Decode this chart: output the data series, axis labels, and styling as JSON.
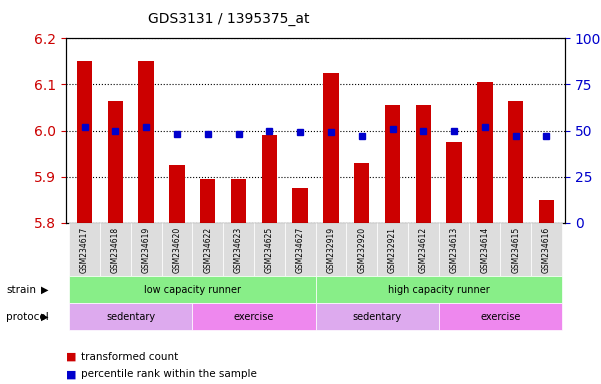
{
  "title": "GDS3131 / 1395375_at",
  "samples": [
    "GSM234617",
    "GSM234618",
    "GSM234619",
    "GSM234620",
    "GSM234622",
    "GSM234623",
    "GSM234625",
    "GSM234627",
    "GSM232919",
    "GSM232920",
    "GSM232921",
    "GSM234612",
    "GSM234613",
    "GSM234614",
    "GSM234615",
    "GSM234616"
  ],
  "bar_values": [
    6.15,
    6.065,
    6.15,
    5.925,
    5.895,
    5.895,
    5.99,
    5.875,
    6.125,
    5.93,
    6.055,
    6.055,
    5.975,
    6.105,
    6.065,
    5.85
  ],
  "dot_values": [
    52,
    50,
    52,
    48,
    48,
    48,
    50,
    49,
    49,
    47,
    51,
    50,
    50,
    52,
    47,
    47
  ],
  "ylim_left": [
    5.8,
    6.2
  ],
  "ylim_right": [
    0,
    100
  ],
  "yticks_left": [
    5.8,
    5.9,
    6.0,
    6.1,
    6.2
  ],
  "yticks_right": [
    0,
    25,
    50,
    75,
    100
  ],
  "bar_color": "#cc0000",
  "dot_color": "#0000cc",
  "bar_base": 5.8,
  "dot_right_scale": true,
  "strain_labels": [
    "low capacity runner",
    "high capacity runner"
  ],
  "strain_ranges": [
    [
      0,
      8
    ],
    [
      8,
      16
    ]
  ],
  "strain_color": "#88ee88",
  "protocol_labels": [
    "sedentary",
    "exercise",
    "sedentary",
    "exercise"
  ],
  "protocol_ranges": [
    [
      0,
      4
    ],
    [
      4,
      8
    ],
    [
      8,
      12
    ],
    [
      12,
      16
    ]
  ],
  "protocol_color": "#ee88ee",
  "legend_items": [
    "transformed count",
    "percentile rank within the sample"
  ],
  "legend_colors": [
    "#cc0000",
    "#0000cc"
  ],
  "xlabel_color": "#cc0000",
  "right_axis_color": "#0000cc",
  "tick_label_bg": "#dddddd",
  "grid_color": "black",
  "grid_linestyle": "dotted"
}
